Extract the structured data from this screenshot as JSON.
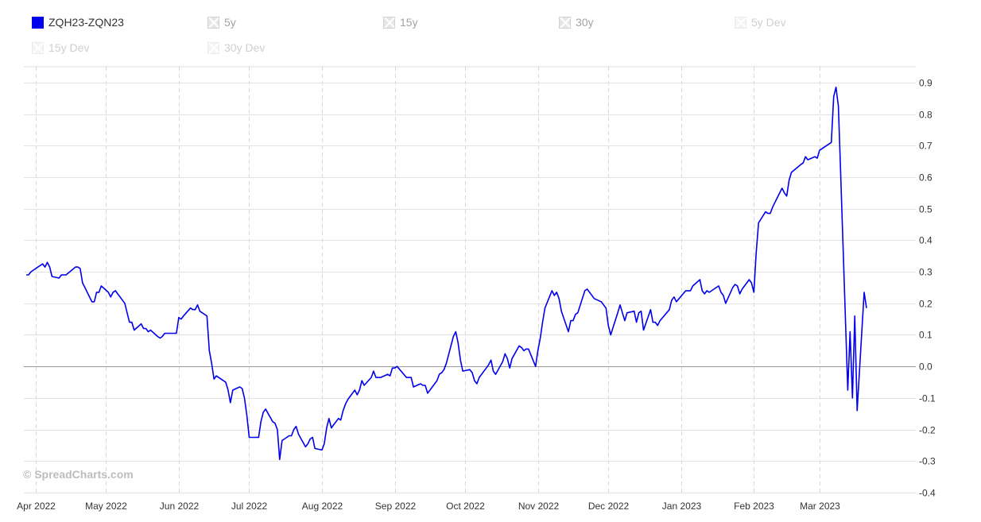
{
  "legend": [
    {
      "label": "ZQH23-ZQN23",
      "active": true,
      "color": "#0000ee",
      "dim": 0
    },
    {
      "label": "5y",
      "active": false,
      "dim": 1
    },
    {
      "label": "15y",
      "active": false,
      "dim": 1
    },
    {
      "label": "30y",
      "active": false,
      "dim": 1
    },
    {
      "label": "5y Dev",
      "active": false,
      "dim": 2
    },
    {
      "label": "15y Dev",
      "active": false,
      "dim": 2
    },
    {
      "label": "30y Dev",
      "active": false,
      "dim": 2
    }
  ],
  "watermark": "© SpreadCharts.com",
  "chart_data": {
    "type": "line",
    "title": "",
    "xlabel": "",
    "ylabel": "",
    "ylim": [
      -0.4,
      0.95
    ],
    "yticks": [
      "0.9",
      "0.8",
      "0.7",
      "0.6",
      "0.5",
      "0.4",
      "0.3",
      "0.2",
      "0.1",
      "0.0",
      "-0.1",
      "-0.2",
      "-0.3",
      "-0.4"
    ],
    "xlim": [
      "2022-03-27",
      "2023-04-11"
    ],
    "xticks": [
      {
        "label": "Apr 2022",
        "date": "2022-04-01"
      },
      {
        "label": "May 2022",
        "date": "2022-05-01"
      },
      {
        "label": "Jun 2022",
        "date": "2022-06-01"
      },
      {
        "label": "Jul 2022",
        "date": "2022-07-01"
      },
      {
        "label": "Aug 2022",
        "date": "2022-08-01"
      },
      {
        "label": "Sep 2022",
        "date": "2022-09-01"
      },
      {
        "label": "Oct 2022",
        "date": "2022-10-01"
      },
      {
        "label": "Nov 2022",
        "date": "2022-11-01"
      },
      {
        "label": "Dec 2022",
        "date": "2022-12-01"
      },
      {
        "label": "Jan 2023",
        "date": "2023-01-01"
      },
      {
        "label": "Feb 2023",
        "date": "2023-02-01"
      },
      {
        "label": "Mar 2023",
        "date": "2023-03-01"
      }
    ],
    "grid": true,
    "legend_position": "top-left",
    "series": [
      {
        "name": "ZQH23-ZQN23",
        "color": "#0000ee",
        "points": [
          [
            "2022-03-28",
            0.29
          ],
          [
            "2022-03-29",
            0.29
          ],
          [
            "2022-03-30",
            0.3
          ],
          [
            "2022-03-31",
            0.305
          ],
          [
            "2022-04-01",
            0.31
          ],
          [
            "2022-04-04",
            0.325
          ],
          [
            "2022-04-05",
            0.315
          ],
          [
            "2022-04-06",
            0.33
          ],
          [
            "2022-04-07",
            0.315
          ],
          [
            "2022-04-08",
            0.285
          ],
          [
            "2022-04-11",
            0.28
          ],
          [
            "2022-04-12",
            0.29
          ],
          [
            "2022-04-13",
            0.29
          ],
          [
            "2022-04-14",
            0.29
          ],
          [
            "2022-04-18",
            0.315
          ],
          [
            "2022-04-19",
            0.315
          ],
          [
            "2022-04-20",
            0.31
          ],
          [
            "2022-04-21",
            0.265
          ],
          [
            "2022-04-22",
            0.25
          ],
          [
            "2022-04-25",
            0.205
          ],
          [
            "2022-04-26",
            0.205
          ],
          [
            "2022-04-27",
            0.235
          ],
          [
            "2022-04-28",
            0.235
          ],
          [
            "2022-04-29",
            0.255
          ],
          [
            "2022-05-02",
            0.235
          ],
          [
            "2022-05-03",
            0.22
          ],
          [
            "2022-05-04",
            0.235
          ],
          [
            "2022-05-05",
            0.24
          ],
          [
            "2022-05-06",
            0.23
          ],
          [
            "2022-05-09",
            0.2
          ],
          [
            "2022-05-10",
            0.17
          ],
          [
            "2022-05-11",
            0.14
          ],
          [
            "2022-05-12",
            0.14
          ],
          [
            "2022-05-13",
            0.115
          ],
          [
            "2022-05-16",
            0.135
          ],
          [
            "2022-05-17",
            0.12
          ],
          [
            "2022-05-18",
            0.12
          ],
          [
            "2022-05-19",
            0.11
          ],
          [
            "2022-05-20",
            0.115
          ],
          [
            "2022-05-23",
            0.095
          ],
          [
            "2022-05-24",
            0.09
          ],
          [
            "2022-05-25",
            0.095
          ],
          [
            "2022-05-26",
            0.105
          ],
          [
            "2022-05-27",
            0.105
          ],
          [
            "2022-05-31",
            0.105
          ],
          [
            "2022-06-01",
            0.155
          ],
          [
            "2022-06-02",
            0.15
          ],
          [
            "2022-06-03",
            0.16
          ],
          [
            "2022-06-06",
            0.185
          ],
          [
            "2022-06-07",
            0.18
          ],
          [
            "2022-06-08",
            0.18
          ],
          [
            "2022-06-09",
            0.195
          ],
          [
            "2022-06-10",
            0.175
          ],
          [
            "2022-06-13",
            0.16
          ],
          [
            "2022-06-14",
            0.05
          ],
          [
            "2022-06-15",
            0.01
          ],
          [
            "2022-06-16",
            -0.04
          ],
          [
            "2022-06-17",
            -0.03
          ],
          [
            "2022-06-20",
            -0.045
          ],
          [
            "2022-06-21",
            -0.05
          ],
          [
            "2022-06-22",
            -0.075
          ],
          [
            "2022-06-23",
            -0.115
          ],
          [
            "2022-06-24",
            -0.075
          ],
          [
            "2022-06-27",
            -0.065
          ],
          [
            "2022-06-28",
            -0.07
          ],
          [
            "2022-06-29",
            -0.1
          ],
          [
            "2022-06-30",
            -0.155
          ],
          [
            "2022-07-01",
            -0.225
          ],
          [
            "2022-07-05",
            -0.225
          ],
          [
            "2022-07-06",
            -0.175
          ],
          [
            "2022-07-07",
            -0.145
          ],
          [
            "2022-07-08",
            -0.135
          ],
          [
            "2022-07-11",
            -0.175
          ],
          [
            "2022-07-12",
            -0.18
          ],
          [
            "2022-07-13",
            -0.2
          ],
          [
            "2022-07-14",
            -0.295
          ],
          [
            "2022-07-15",
            -0.235
          ],
          [
            "2022-07-18",
            -0.22
          ],
          [
            "2022-07-19",
            -0.22
          ],
          [
            "2022-07-20",
            -0.2
          ],
          [
            "2022-07-21",
            -0.19
          ],
          [
            "2022-07-22",
            -0.215
          ],
          [
            "2022-07-25",
            -0.255
          ],
          [
            "2022-07-26",
            -0.245
          ],
          [
            "2022-07-27",
            -0.23
          ],
          [
            "2022-07-28",
            -0.225
          ],
          [
            "2022-07-29",
            -0.26
          ],
          [
            "2022-08-01",
            -0.265
          ],
          [
            "2022-08-02",
            -0.245
          ],
          [
            "2022-08-03",
            -0.195
          ],
          [
            "2022-08-04",
            -0.165
          ],
          [
            "2022-08-05",
            -0.195
          ],
          [
            "2022-08-08",
            -0.165
          ],
          [
            "2022-08-09",
            -0.17
          ],
          [
            "2022-08-10",
            -0.14
          ],
          [
            "2022-08-11",
            -0.12
          ],
          [
            "2022-08-12",
            -0.105
          ],
          [
            "2022-08-15",
            -0.075
          ],
          [
            "2022-08-16",
            -0.09
          ],
          [
            "2022-08-17",
            -0.075
          ],
          [
            "2022-08-18",
            -0.045
          ],
          [
            "2022-08-19",
            -0.06
          ],
          [
            "2022-08-22",
            -0.035
          ],
          [
            "2022-08-23",
            -0.015
          ],
          [
            "2022-08-24",
            -0.035
          ],
          [
            "2022-08-25",
            -0.035
          ],
          [
            "2022-08-26",
            -0.035
          ],
          [
            "2022-08-29",
            -0.025
          ],
          [
            "2022-08-30",
            -0.03
          ],
          [
            "2022-08-31",
            -0.005
          ],
          [
            "2022-09-01",
            -0.005
          ],
          [
            "2022-09-02",
            0.0
          ],
          [
            "2022-09-06",
            -0.035
          ],
          [
            "2022-09-07",
            -0.035
          ],
          [
            "2022-09-08",
            -0.035
          ],
          [
            "2022-09-09",
            -0.065
          ],
          [
            "2022-09-12",
            -0.055
          ],
          [
            "2022-09-13",
            -0.06
          ],
          [
            "2022-09-14",
            -0.06
          ],
          [
            "2022-09-15",
            -0.085
          ],
          [
            "2022-09-16",
            -0.075
          ],
          [
            "2022-09-19",
            -0.045
          ],
          [
            "2022-09-20",
            -0.025
          ],
          [
            "2022-09-21",
            -0.02
          ],
          [
            "2022-09-22",
            -0.01
          ],
          [
            "2022-09-23",
            0.01
          ],
          [
            "2022-09-26",
            0.095
          ],
          [
            "2022-09-27",
            0.11
          ],
          [
            "2022-09-28",
            0.075
          ],
          [
            "2022-09-29",
            0.02
          ],
          [
            "2022-09-30",
            -0.015
          ],
          [
            "2022-10-03",
            -0.01
          ],
          [
            "2022-10-04",
            -0.02
          ],
          [
            "2022-10-05",
            -0.045
          ],
          [
            "2022-10-06",
            -0.055
          ],
          [
            "2022-10-07",
            -0.035
          ],
          [
            "2022-10-10",
            -0.005
          ],
          [
            "2022-10-11",
            0.005
          ],
          [
            "2022-10-12",
            0.02
          ],
          [
            "2022-10-13",
            -0.015
          ],
          [
            "2022-10-14",
            -0.025
          ],
          [
            "2022-10-17",
            0.015
          ],
          [
            "2022-10-18",
            0.04
          ],
          [
            "2022-10-19",
            0.025
          ],
          [
            "2022-10-20",
            -0.005
          ],
          [
            "2022-10-21",
            0.025
          ],
          [
            "2022-10-24",
            0.065
          ],
          [
            "2022-10-25",
            0.06
          ],
          [
            "2022-10-26",
            0.05
          ],
          [
            "2022-10-27",
            0.055
          ],
          [
            "2022-10-28",
            0.055
          ],
          [
            "2022-10-31",
            0.0
          ],
          [
            "2022-11-01",
            0.05
          ],
          [
            "2022-11-02",
            0.09
          ],
          [
            "2022-11-03",
            0.14
          ],
          [
            "2022-11-04",
            0.185
          ],
          [
            "2022-11-07",
            0.24
          ],
          [
            "2022-11-08",
            0.225
          ],
          [
            "2022-11-09",
            0.235
          ],
          [
            "2022-11-10",
            0.215
          ],
          [
            "2022-11-11",
            0.175
          ],
          [
            "2022-11-14",
            0.11
          ],
          [
            "2022-11-15",
            0.145
          ],
          [
            "2022-11-16",
            0.145
          ],
          [
            "2022-11-17",
            0.165
          ],
          [
            "2022-11-18",
            0.17
          ],
          [
            "2022-11-21",
            0.24
          ],
          [
            "2022-11-22",
            0.245
          ],
          [
            "2022-11-23",
            0.235
          ],
          [
            "2022-11-25",
            0.215
          ],
          [
            "2022-11-28",
            0.205
          ],
          [
            "2022-11-29",
            0.195
          ],
          [
            "2022-11-30",
            0.185
          ],
          [
            "2022-12-01",
            0.13
          ],
          [
            "2022-12-02",
            0.1
          ],
          [
            "2022-12-05",
            0.17
          ],
          [
            "2022-12-06",
            0.195
          ],
          [
            "2022-12-07",
            0.17
          ],
          [
            "2022-12-08",
            0.145
          ],
          [
            "2022-12-09",
            0.17
          ],
          [
            "2022-12-12",
            0.175
          ],
          [
            "2022-12-13",
            0.14
          ],
          [
            "2022-12-14",
            0.17
          ],
          [
            "2022-12-15",
            0.175
          ],
          [
            "2022-12-16",
            0.115
          ],
          [
            "2022-12-19",
            0.18
          ],
          [
            "2022-12-20",
            0.14
          ],
          [
            "2022-12-21",
            0.14
          ],
          [
            "2022-12-22",
            0.13
          ],
          [
            "2022-12-23",
            0.145
          ],
          [
            "2022-12-27",
            0.18
          ],
          [
            "2022-12-28",
            0.21
          ],
          [
            "2022-12-29",
            0.22
          ],
          [
            "2022-12-30",
            0.205
          ],
          [
            "2023-01-03",
            0.24
          ],
          [
            "2023-01-04",
            0.24
          ],
          [
            "2023-01-05",
            0.24
          ],
          [
            "2023-01-06",
            0.255
          ],
          [
            "2023-01-09",
            0.275
          ],
          [
            "2023-01-10",
            0.24
          ],
          [
            "2023-01-11",
            0.23
          ],
          [
            "2023-01-12",
            0.24
          ],
          [
            "2023-01-13",
            0.235
          ],
          [
            "2023-01-17",
            0.255
          ],
          [
            "2023-01-18",
            0.235
          ],
          [
            "2023-01-19",
            0.225
          ],
          [
            "2023-01-20",
            0.2
          ],
          [
            "2023-01-23",
            0.25
          ],
          [
            "2023-01-24",
            0.26
          ],
          [
            "2023-01-25",
            0.255
          ],
          [
            "2023-01-26",
            0.23
          ],
          [
            "2023-01-27",
            0.245
          ],
          [
            "2023-01-30",
            0.275
          ],
          [
            "2023-01-31",
            0.265
          ],
          [
            "2023-02-01",
            0.235
          ],
          [
            "2023-02-02",
            0.36
          ],
          [
            "2023-02-03",
            0.455
          ],
          [
            "2023-02-06",
            0.49
          ],
          [
            "2023-02-07",
            0.485
          ],
          [
            "2023-02-08",
            0.485
          ],
          [
            "2023-02-09",
            0.505
          ],
          [
            "2023-02-10",
            0.52
          ],
          [
            "2023-02-13",
            0.565
          ],
          [
            "2023-02-14",
            0.55
          ],
          [
            "2023-02-15",
            0.54
          ],
          [
            "2023-02-16",
            0.59
          ],
          [
            "2023-02-17",
            0.615
          ],
          [
            "2023-02-21",
            0.64
          ],
          [
            "2023-02-22",
            0.645
          ],
          [
            "2023-02-23",
            0.665
          ],
          [
            "2023-02-24",
            0.655
          ],
          [
            "2023-02-27",
            0.665
          ],
          [
            "2023-02-28",
            0.66
          ],
          [
            "2023-03-01",
            0.685
          ],
          [
            "2023-03-02",
            0.69
          ],
          [
            "2023-03-03",
            0.695
          ],
          [
            "2023-03-06",
            0.71
          ],
          [
            "2023-03-07",
            0.855
          ],
          [
            "2023-03-08",
            0.885
          ],
          [
            "2023-03-09",
            0.825
          ],
          [
            "2023-03-10",
            0.61
          ],
          [
            "2023-03-13",
            -0.075
          ],
          [
            "2023-03-14",
            0.11
          ],
          [
            "2023-03-15",
            -0.1
          ],
          [
            "2023-03-16",
            0.16
          ],
          [
            "2023-03-17",
            -0.14
          ],
          [
            "2023-03-20",
            0.235
          ],
          [
            "2023-03-21",
            0.185
          ]
        ]
      }
    ]
  }
}
